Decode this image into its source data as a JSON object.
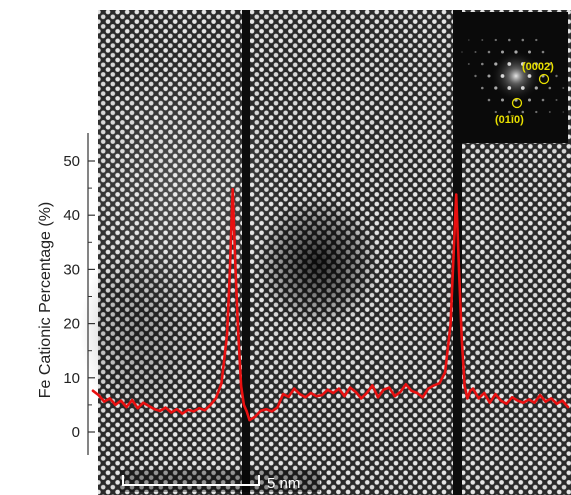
{
  "chart_data": {
    "type": "line",
    "ylabel": "Fe Cationic Percentage (%)",
    "ylim": [
      -2,
      56
    ],
    "yticks": [
      "0",
      "10",
      "20",
      "30",
      "40",
      "50"
    ],
    "series": [
      {
        "color": "#e81010",
        "x": [
          0,
          0.2,
          0.4,
          0.6,
          0.8,
          1.0,
          1.2,
          1.4,
          1.6,
          1.8,
          2.0,
          2.2,
          2.4,
          2.6,
          2.8,
          3.0,
          3.2,
          3.4,
          3.6,
          3.8,
          4.0,
          4.2,
          4.4,
          4.6,
          4.8,
          4.9,
          5.0,
          5.1,
          5.2,
          5.3,
          5.4,
          5.5,
          5.6,
          5.8,
          6.0,
          6.2,
          6.4,
          6.6,
          6.8,
          7.0,
          7.2,
          7.4,
          7.6,
          7.8,
          8.0,
          8.2,
          8.4,
          8.6,
          8.8,
          9.0,
          9.2,
          9.4,
          9.6,
          9.8,
          10.0,
          10.2,
          10.4,
          10.6,
          10.8,
          11.0,
          11.2,
          11.4,
          11.6,
          11.8,
          12.0,
          12.2,
          12.4,
          12.6,
          12.8,
          12.9,
          13.0,
          13.1,
          13.2,
          13.3,
          13.4,
          13.5,
          13.6,
          13.8,
          14.0,
          14.2,
          14.4,
          14.6,
          14.8,
          15.0,
          15.2,
          15.4,
          15.6,
          15.8,
          16.0,
          16.2,
          16.4,
          16.6,
          16.8,
          17.0
        ],
        "y": [
          7.6,
          6.8,
          5.6,
          6.2,
          5.0,
          5.8,
          4.6,
          5.9,
          4.4,
          5.4,
          4.8,
          4.2,
          3.9,
          4.5,
          3.6,
          4.2,
          3.4,
          4.1,
          3.8,
          4.4,
          4.0,
          5.0,
          6.2,
          9.0,
          18.0,
          30.0,
          44.8,
          30.0,
          18.0,
          8.5,
          5.0,
          3.8,
          2.2,
          2.8,
          3.9,
          4.2,
          3.8,
          4.5,
          7.0,
          6.5,
          8.0,
          7.0,
          6.4,
          7.2,
          6.6,
          6.8,
          7.8,
          7.2,
          8.0,
          6.6,
          8.2,
          7.4,
          6.2,
          7.2,
          8.6,
          6.4,
          7.8,
          8.2,
          6.6,
          7.4,
          8.8,
          7.6,
          7.2,
          6.4,
          8.0,
          8.6,
          9.0,
          11.0,
          20.0,
          32.0,
          43.8,
          30.0,
          17.0,
          8.5,
          6.2,
          7.6,
          8.0,
          6.2,
          7.2,
          5.4,
          7.0,
          5.8,
          5.2,
          6.4,
          5.8,
          5.4,
          6.0,
          5.4,
          6.8,
          5.6,
          6.2,
          5.2,
          5.8,
          4.6
        ]
      }
    ]
  },
  "fft_inset": {
    "spots": [
      {
        "label": "(0002)"
      },
      {
        "label": "(01ī0)"
      }
    ]
  },
  "scale_bar": {
    "label": "5 nm"
  }
}
